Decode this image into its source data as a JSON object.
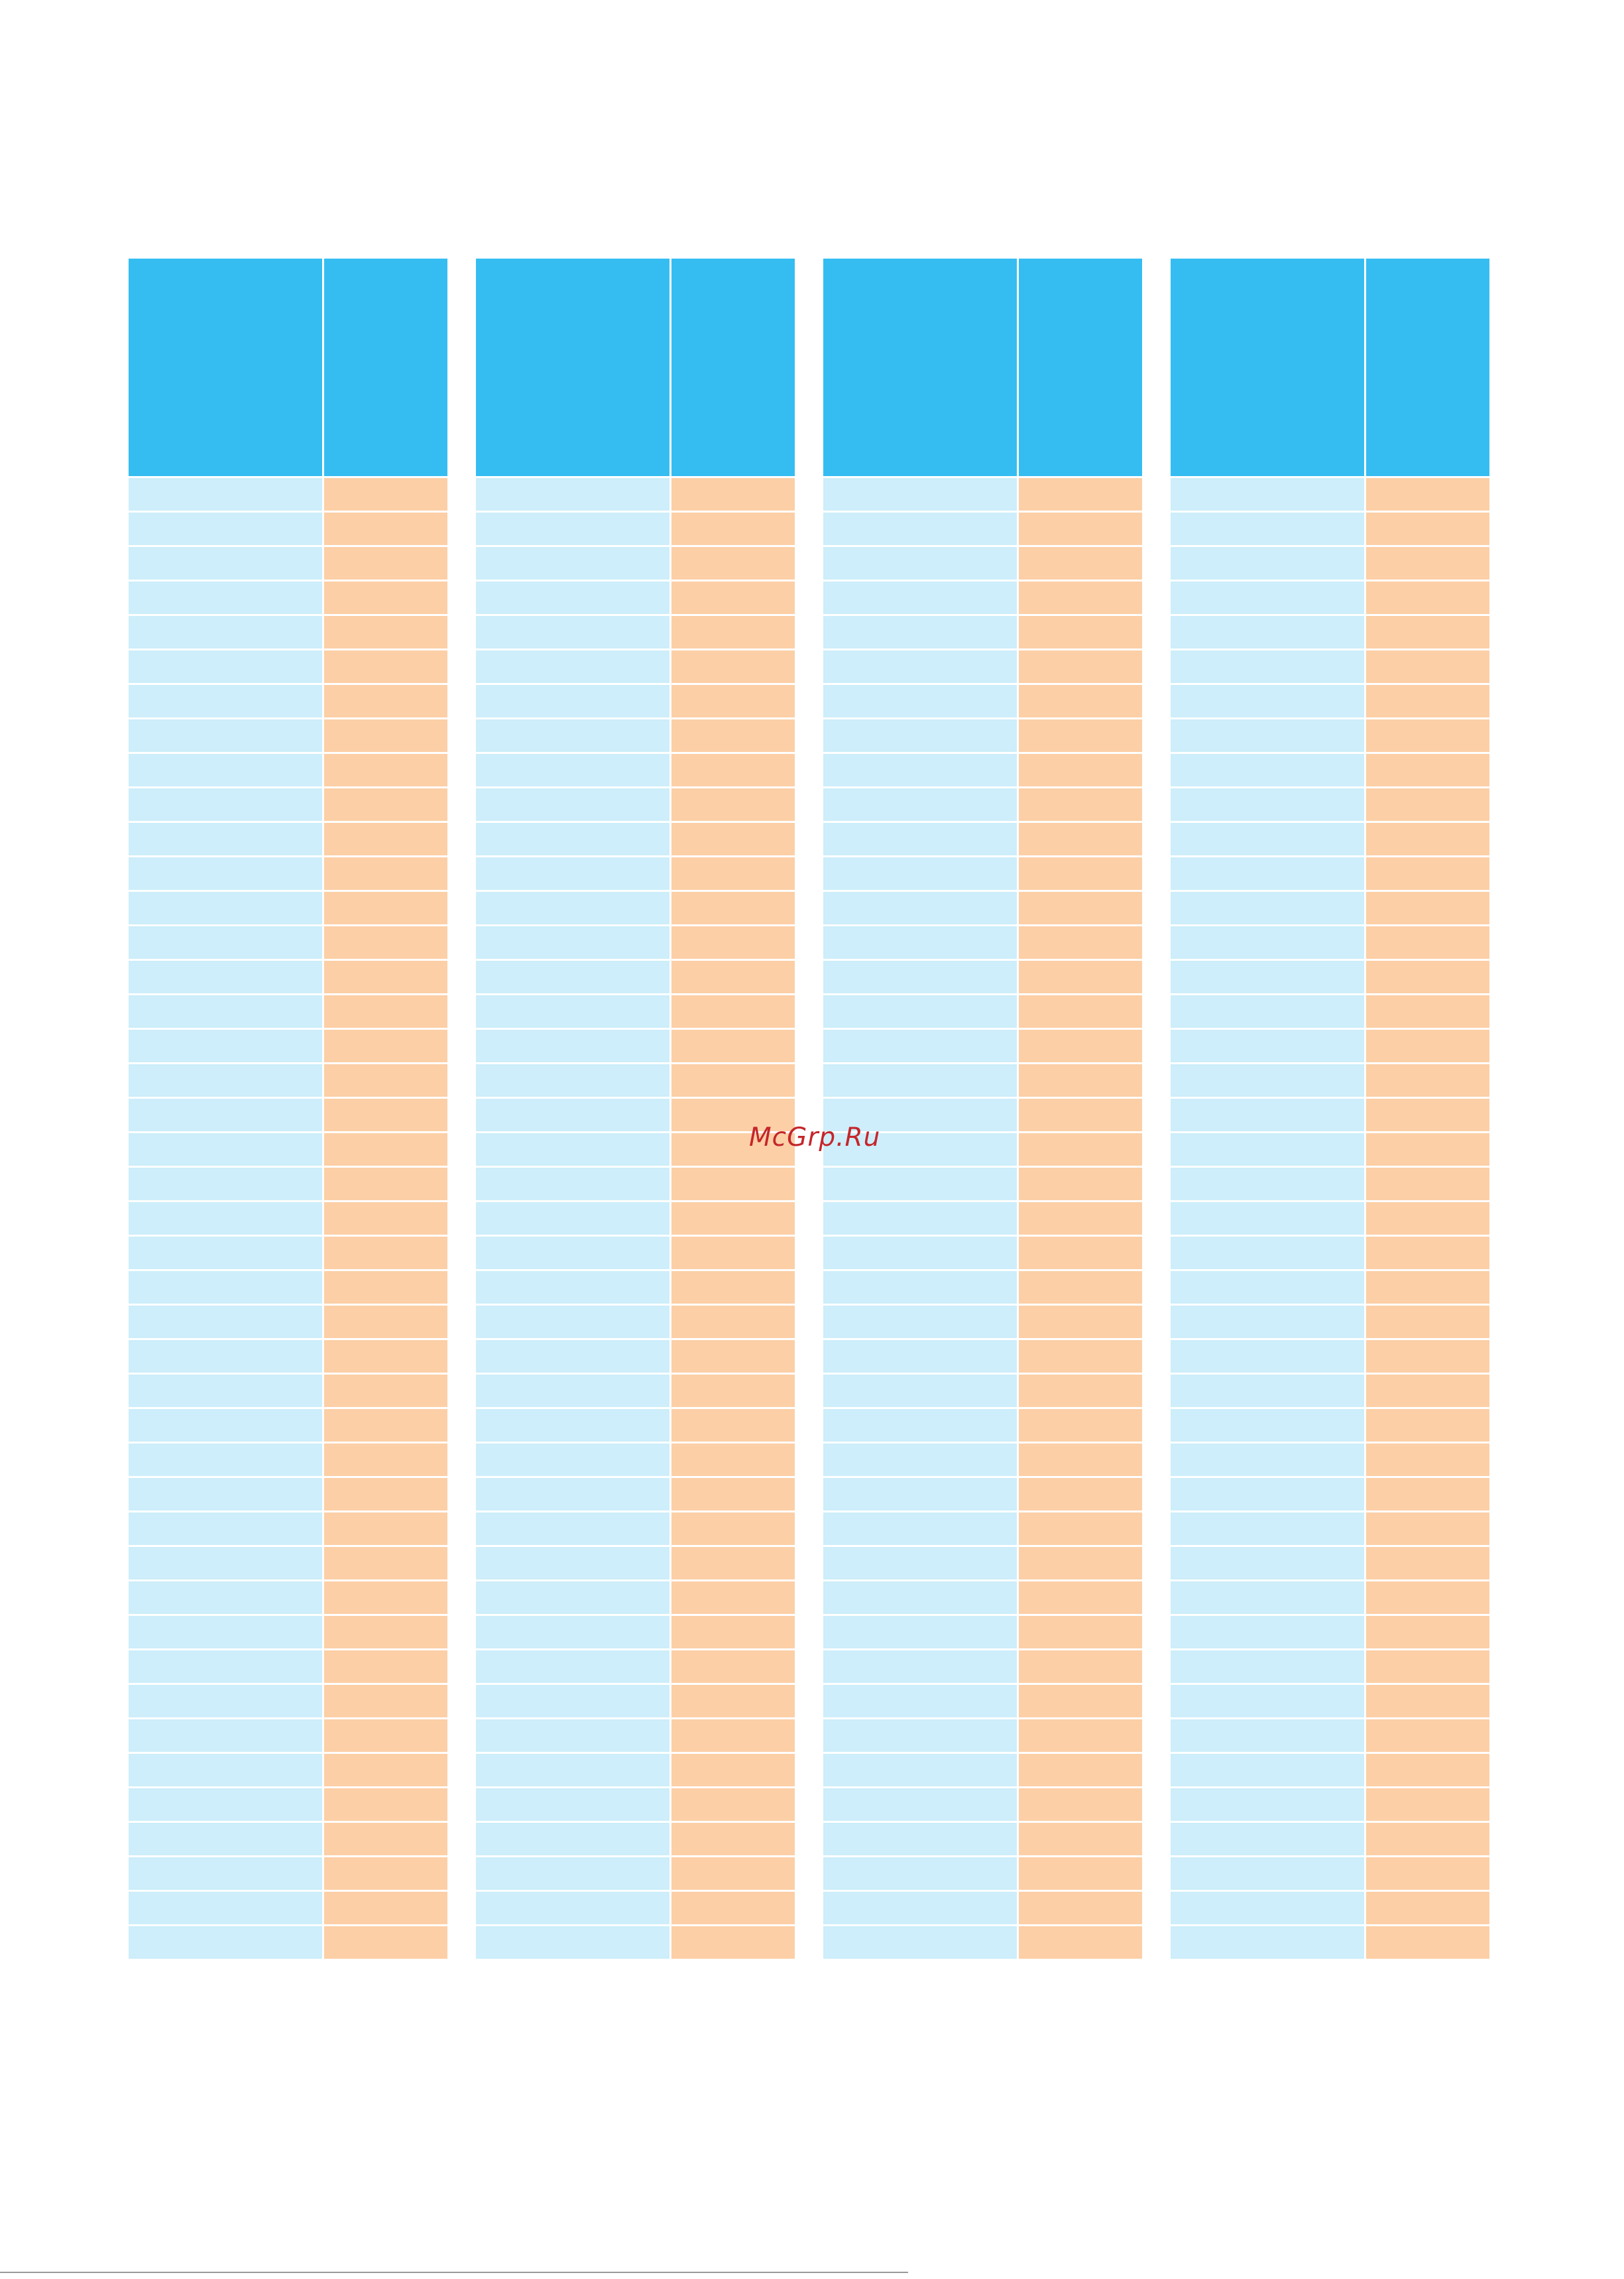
{
  "watermark": {
    "text": "McGrp.Ru",
    "color": "#c4262b"
  },
  "colors": {
    "header": "#35bdf2",
    "cell_left": "#cdeefa",
    "cell_right": "#fccfa6",
    "divider": "#ffffff"
  },
  "tables": {
    "count": 4,
    "rows_per_table": 43,
    "columns_per_table": 2
  }
}
